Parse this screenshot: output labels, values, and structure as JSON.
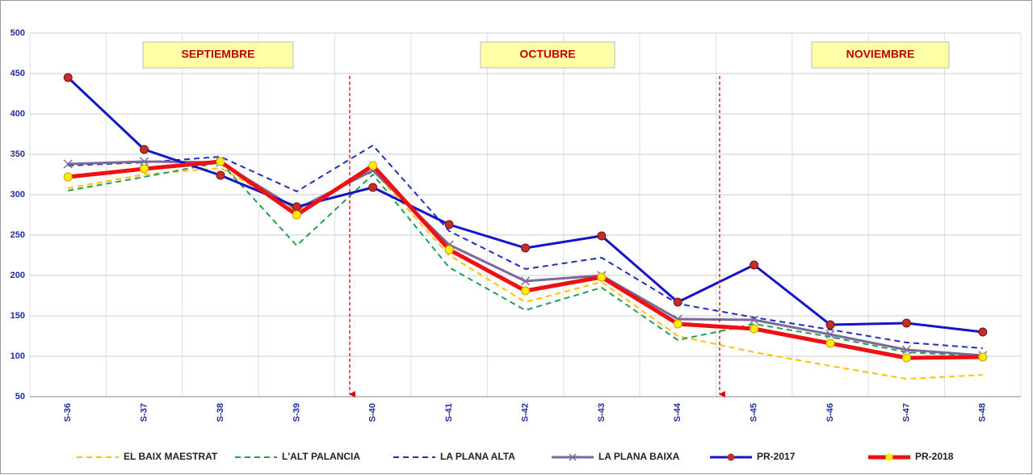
{
  "chart_data": {
    "type": "line",
    "categories": [
      "S-36",
      "S-37",
      "S-38",
      "S-39",
      "S-40",
      "S-41",
      "S-42",
      "S-43",
      "S-44",
      "S-45",
      "S-46",
      "S-47",
      "S-48"
    ],
    "annotations": [
      "SEPTIEMBRE",
      "OCTUBRE",
      "NOVIEMBRE"
    ],
    "ylim": [
      50,
      500
    ],
    "yticks": [
      50,
      100,
      150,
      200,
      250,
      300,
      350,
      400,
      450,
      500
    ],
    "grid": true,
    "legend": "bottom",
    "series": [
      {
        "name": "EL BAIX MAESTRAT",
        "color": "#ffc000",
        "style": "dashed",
        "values": [
          308,
          325,
          333,
          280,
          330,
          225,
          167,
          192,
          125,
          105,
          88,
          72,
          77
        ]
      },
      {
        "name": "L'ALT PALANCIA",
        "color": "#22a050",
        "style": "dashed",
        "values": [
          305,
          322,
          340,
          237,
          325,
          210,
          157,
          185,
          120,
          140,
          124,
          105,
          100
        ]
      },
      {
        "name": "LA PLANA ALTA",
        "color": "#1f2fbf",
        "style": "dashed",
        "values": [
          336,
          340,
          347,
          304,
          361,
          255,
          208,
          222,
          165,
          148,
          133,
          117,
          110
        ]
      },
      {
        "name": "LA PLANA BAIXA",
        "color": "#7a6a9a",
        "style": "solid",
        "marker": "x",
        "values": [
          338,
          341,
          340,
          282,
          330,
          238,
          193,
          200,
          146,
          145,
          127,
          108,
          101
        ]
      },
      {
        "name": "PR-2017",
        "color": "#1414c8",
        "style": "solid",
        "marker": "circle",
        "marker_color": "#c0302a",
        "values": [
          445,
          356,
          324,
          285,
          309,
          263,
          234,
          249,
          167,
          213,
          139,
          141,
          130
        ]
      },
      {
        "name": "PR-2018",
        "color": "#ee1111",
        "style": "thick",
        "marker": "circle",
        "marker_color": "#ffee00",
        "values": [
          322,
          332,
          341,
          275,
          336,
          232,
          181,
          198,
          140,
          134,
          116,
          98,
          99
        ]
      }
    ]
  }
}
